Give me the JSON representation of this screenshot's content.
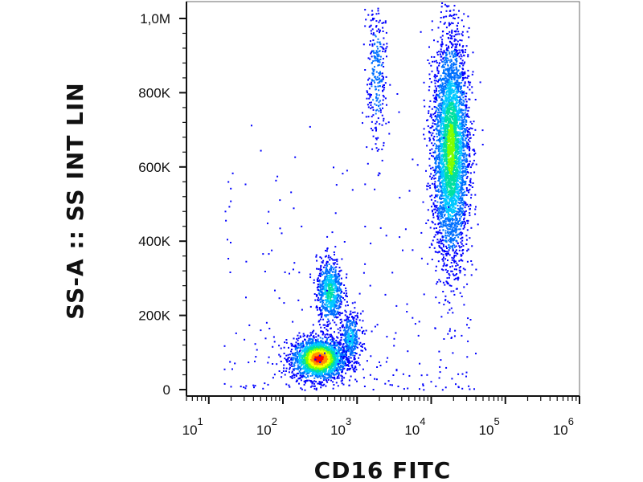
{
  "chart_data": {
    "type": "scatter",
    "title": "",
    "xlabel": "CD16 FITC",
    "ylabel": "SS-A :: SS INT LIN",
    "x_scale": "log",
    "xlim": [
      5,
      1000000
    ],
    "ylim": [
      0,
      1050000
    ],
    "x_ticks": [
      {
        "value": 10,
        "base": "10",
        "exp": "1"
      },
      {
        "value": 100,
        "base": "10",
        "exp": "2"
      },
      {
        "value": 1000,
        "base": "10",
        "exp": "3"
      },
      {
        "value": 10000,
        "base": "10",
        "exp": "4"
      },
      {
        "value": 100000,
        "base": "10",
        "exp": "5"
      },
      {
        "value": 1000000,
        "base": "10",
        "exp": "6"
      }
    ],
    "y_ticks": [
      {
        "value": 0,
        "label": "0"
      },
      {
        "value": 200000,
        "label": "200K"
      },
      {
        "value": 400000,
        "label": "400K"
      },
      {
        "value": 600000,
        "label": "600K"
      },
      {
        "value": 800000,
        "label": "800K"
      },
      {
        "value": 1000000,
        "label": "1,0M"
      }
    ],
    "density_colors": [
      "#0000ff",
      "#0070ff",
      "#00c8ff",
      "#00e0a0",
      "#7fff00",
      "#ffff00",
      "#ff9000",
      "#ff0000"
    ],
    "populations": [
      {
        "x_center": 300,
        "y_center": 85000,
        "x_spread_log": 0.18,
        "y_spread": 28000,
        "count": 2200,
        "peak_color": "#ff0000"
      },
      {
        "x_center": 420,
        "y_center": 265000,
        "x_spread_log": 0.09,
        "y_spread": 45000,
        "count": 700,
        "peak_color": "#00e0a0"
      },
      {
        "x_center": 800,
        "y_center": 140000,
        "x_spread_log": 0.07,
        "y_spread": 35000,
        "count": 350,
        "peak_color": "#00c8ff"
      },
      {
        "x_center": 1800,
        "y_center": 850000,
        "x_spread_log": 0.07,
        "y_spread": 110000,
        "count": 300,
        "peak_color": "#0070ff"
      },
      {
        "x_center": 18000,
        "y_center": 650000,
        "x_spread_log": 0.12,
        "y_spread": 150000,
        "count": 3800,
        "peak_color": "#7fff00"
      }
    ]
  }
}
